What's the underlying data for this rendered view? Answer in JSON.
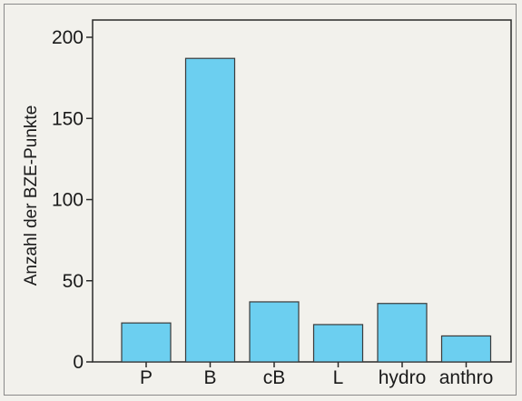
{
  "chart_data": {
    "type": "bar",
    "categories": [
      "P",
      "B",
      "cB",
      "L",
      "hydro",
      "anthro"
    ],
    "values": [
      24,
      187,
      37,
      23,
      36,
      16
    ],
    "title": "",
    "xlabel": "",
    "ylabel": "Anzahl der BZE-Punkte",
    "ylim": [
      0,
      200
    ],
    "yticks": [
      0,
      50,
      100,
      150,
      200
    ],
    "grid": false,
    "bar_color": "#6ccff0",
    "bar_edge_color": "#3a3a3a"
  }
}
